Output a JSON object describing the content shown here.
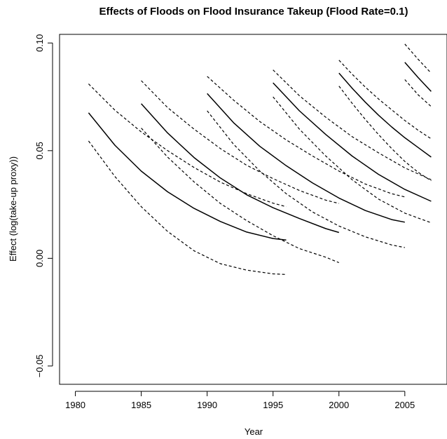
{
  "chart_data": {
    "type": "line",
    "title": "Effects of Floods on Flood Insurance Takeup (Flood Rate=0.1)",
    "xlabel": "Year",
    "ylabel": "Effect (log(take-up proxy))",
    "xlim": [
      1978.8,
      2008.2
    ],
    "ylim": [
      -0.0585,
      0.104
    ],
    "xticks": [
      1980,
      1985,
      1990,
      1995,
      2000,
      2005
    ],
    "yticks": [
      -0.05,
      0.0,
      0.05,
      0.1
    ],
    "xtick_labels": [
      "1980",
      "1985",
      "1990",
      "1995",
      "2000",
      "2005"
    ],
    "ytick_labels": [
      "−0.05",
      "0.00",
      "0.05",
      "0.10"
    ],
    "grid": false,
    "series": [
      {
        "group": "flood-1981",
        "style": "solid",
        "x": [
          1981,
          1983,
          1985,
          1987,
          1989,
          1991,
          1993,
          1995,
          1996
        ],
        "y": [
          0.0676,
          0.0525,
          0.0405,
          0.0309,
          0.0232,
          0.0171,
          0.0122,
          0.0092,
          0.0085
        ]
      },
      {
        "group": "flood-1981",
        "style": "dashed",
        "x": [
          1981,
          1983,
          1985,
          1987,
          1989,
          1991,
          1993,
          1995,
          1996
        ],
        "y": [
          0.081,
          0.0688,
          0.0587,
          0.05,
          0.0422,
          0.0354,
          0.03,
          0.0256,
          0.024
        ]
      },
      {
        "group": "flood-1981",
        "style": "dashed",
        "x": [
          1981,
          1983,
          1985,
          1987,
          1989,
          1991,
          1993,
          1995,
          1996
        ],
        "y": [
          0.0545,
          0.038,
          0.024,
          0.0125,
          0.0035,
          -0.0025,
          -0.0055,
          -0.0072,
          -0.0075
        ]
      },
      {
        "group": "flood-1985",
        "style": "solid",
        "x": [
          1985,
          1987,
          1989,
          1991,
          1993,
          1995,
          1997,
          1999,
          2000
        ],
        "y": [
          0.0718,
          0.0582,
          0.0468,
          0.0373,
          0.0295,
          0.0235,
          0.0185,
          0.0138,
          0.012
        ]
      },
      {
        "group": "flood-1985",
        "style": "dashed",
        "x": [
          1985,
          1987,
          1989,
          1991,
          1993,
          1995,
          1997,
          1999,
          2000
        ],
        "y": [
          0.0825,
          0.07,
          0.06,
          0.051,
          0.0432,
          0.037,
          0.0315,
          0.027,
          0.0255
        ]
      },
      {
        "group": "flood-1985",
        "style": "dashed",
        "x": [
          1985,
          1987,
          1989,
          1991,
          1993,
          1995,
          1997,
          1999,
          2000
        ],
        "y": [
          0.0605,
          0.047,
          0.0355,
          0.0255,
          0.0175,
          0.0105,
          0.0045,
          0.0005,
          -0.002
        ]
      },
      {
        "group": "flood-1990",
        "style": "solid",
        "x": [
          1990,
          1992,
          1994,
          1996,
          1998,
          2000,
          2002,
          2004,
          2005
        ],
        "y": [
          0.0765,
          0.063,
          0.052,
          0.043,
          0.035,
          0.028,
          0.0222,
          0.018,
          0.0168
        ]
      },
      {
        "group": "flood-1990",
        "style": "dashed",
        "x": [
          1990,
          1992,
          1994,
          1996,
          1998,
          2000,
          2002,
          2004,
          2005
        ],
        "y": [
          0.0845,
          0.0735,
          0.0635,
          0.055,
          0.0475,
          0.0405,
          0.0345,
          0.03,
          0.0285
        ]
      },
      {
        "group": "flood-1990",
        "style": "dashed",
        "x": [
          1990,
          1992,
          1994,
          1996,
          1998,
          2000,
          2002,
          2004,
          2005
        ],
        "y": [
          0.0685,
          0.053,
          0.0405,
          0.03,
          0.0215,
          0.015,
          0.01,
          0.0062,
          0.005
        ]
      },
      {
        "group": "flood-1995",
        "style": "solid",
        "x": [
          1995,
          1997,
          1999,
          2001,
          2003,
          2005,
          2007
        ],
        "y": [
          0.0815,
          0.0685,
          0.0575,
          0.0475,
          0.039,
          0.032,
          0.0265
        ]
      },
      {
        "group": "flood-1995",
        "style": "dashed",
        "x": [
          1995,
          1997,
          1999,
          2001,
          2003,
          2005,
          2007
        ],
        "y": [
          0.0875,
          0.0755,
          0.0655,
          0.0565,
          0.049,
          0.042,
          0.0365
        ]
      },
      {
        "group": "flood-1995",
        "style": "dashed",
        "x": [
          1995,
          1997,
          1999,
          2001,
          2003,
          2005,
          2007
        ],
        "y": [
          0.075,
          0.06,
          0.0475,
          0.0365,
          0.0275,
          0.021,
          0.0165
        ]
      },
      {
        "group": "flood-2000",
        "style": "solid",
        "x": [
          2000,
          2001,
          2002,
          2003,
          2004,
          2005,
          2006,
          2007
        ],
        "y": [
          0.086,
          0.079,
          0.0725,
          0.0665,
          0.061,
          0.056,
          0.0515,
          0.047
        ]
      },
      {
        "group": "flood-2000",
        "style": "dashed",
        "x": [
          2000,
          2001,
          2002,
          2003,
          2004,
          2005,
          2006,
          2007
        ],
        "y": [
          0.092,
          0.0855,
          0.0795,
          0.074,
          0.069,
          0.064,
          0.0595,
          0.0555
        ]
      },
      {
        "group": "flood-2000",
        "style": "dashed",
        "x": [
          2000,
          2001,
          2002,
          2003,
          2004,
          2005,
          2006,
          2007
        ],
        "y": [
          0.08,
          0.072,
          0.0645,
          0.0575,
          0.051,
          0.045,
          0.04,
          0.036
        ]
      },
      {
        "group": "flood-2005",
        "style": "solid",
        "x": [
          2005,
          2006,
          2007
        ],
        "y": [
          0.091,
          0.084,
          0.0775
        ]
      },
      {
        "group": "flood-2005",
        "style": "dashed",
        "x": [
          2005,
          2006,
          2007
        ],
        "y": [
          0.0995,
          0.0925,
          0.086
        ]
      },
      {
        "group": "flood-2005",
        "style": "dashed",
        "x": [
          2005,
          2006,
          2007
        ],
        "y": [
          0.083,
          0.076,
          0.0705
        ]
      }
    ]
  }
}
